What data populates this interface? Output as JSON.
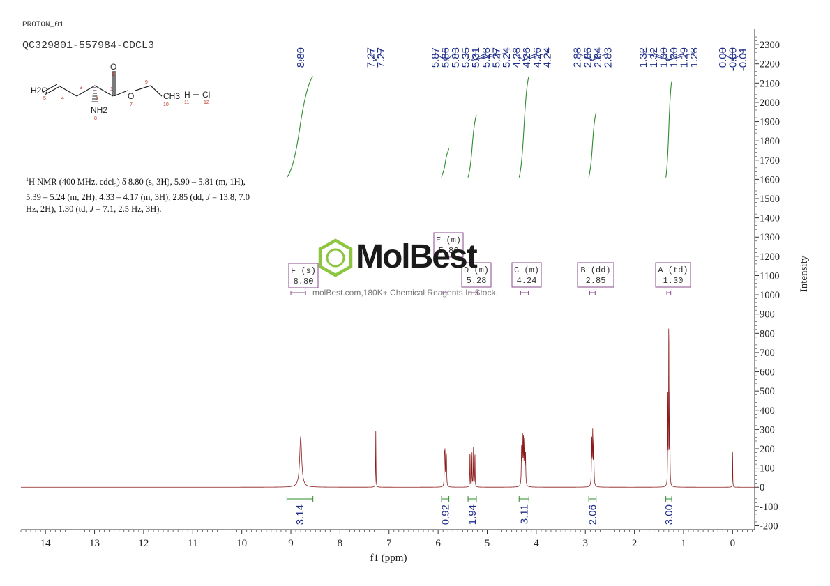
{
  "header": {
    "experiment": "PROTON_01",
    "sample_id": "QC329801-557984-CDCL3"
  },
  "molecule": {
    "atoms": [
      {
        "label": "H2C",
        "num": "5"
      },
      {
        "label": "",
        "num": "4"
      },
      {
        "label": "",
        "num": "3"
      },
      {
        "label": "",
        "num": "2"
      },
      {
        "label": "",
        "num": "1"
      },
      {
        "label": "O",
        "num": "6"
      },
      {
        "label": "O",
        "num": "7"
      },
      {
        "label": "NH2",
        "num": "8"
      },
      {
        "label": "",
        "num": "9"
      },
      {
        "label": "CH3",
        "num": "10"
      },
      {
        "label": "H",
        "num": "11"
      },
      {
        "label": "Cl",
        "num": "12"
      }
    ]
  },
  "nmr_text": {
    "nucleus": "1",
    "line1": "H NMR (400 MHz, cdcl",
    "line1_sub": "3",
    "line1_rest": ") δ 8.80 (s, 3H), 5.90 – 5.81 (m, 1H),",
    "line2": "5.39 – 5.24 (m, 2H), 4.33 – 4.17 (m, 3H), 2.85 (dd, ",
    "j": "J",
    "line2_rest": " = 13.8, 7.0",
    "line3": "Hz, 2H), 1.30 (td, ",
    "line3_rest": " = 7.1, 2.5 Hz, 3H)."
  },
  "watermark": {
    "brand": "MolBest",
    "tagline": "molBest.com,180K+ Chemical Reagents In Stock.",
    "color": "#8cc63f"
  },
  "colors": {
    "spectrum": "#8b1a1a",
    "peak_labels": "#1f2f8a",
    "integral": "#2e8b2e",
    "multiplet_box": "#8a4a8a",
    "axis": "#333333"
  },
  "chart_data": {
    "type": "line",
    "xlabel": "f1 (ppm)",
    "ylabel": "Intensity",
    "xlim": [
      14.5,
      -0.45
    ],
    "ylim": [
      -220,
      2380
    ],
    "x_ticks": [
      14,
      13,
      12,
      11,
      10,
      9,
      8,
      7,
      6,
      5,
      4,
      3,
      2,
      1,
      0
    ],
    "y_ticks": [
      -200,
      -100,
      0,
      100,
      200,
      300,
      400,
      500,
      600,
      700,
      800,
      900,
      1000,
      1100,
      1200,
      1300,
      1400,
      1500,
      1600,
      1700,
      1800,
      1900,
      2000,
      2100,
      2200,
      2300
    ],
    "peaks": [
      {
        "ppm": 8.8,
        "height": 262,
        "width": 0.025
      },
      {
        "ppm": 7.27,
        "height": 292,
        "width": 0.004
      },
      {
        "ppm": 5.87,
        "height": 155,
        "width": 0.005
      },
      {
        "ppm": 5.86,
        "height": 160,
        "width": 0.005
      },
      {
        "ppm": 5.84,
        "height": 150,
        "width": 0.005
      },
      {
        "ppm": 5.83,
        "height": 140,
        "width": 0.005
      },
      {
        "ppm": 5.35,
        "height": 198,
        "width": 0.004
      },
      {
        "ppm": 5.31,
        "height": 185,
        "width": 0.004
      },
      {
        "ppm": 5.28,
        "height": 205,
        "width": 0.004
      },
      {
        "ppm": 5.25,
        "height": 185,
        "width": 0.004
      },
      {
        "ppm": 4.3,
        "height": 190,
        "width": 0.006
      },
      {
        "ppm": 4.28,
        "height": 250,
        "width": 0.006
      },
      {
        "ppm": 4.26,
        "height": 230,
        "width": 0.006
      },
      {
        "ppm": 4.24,
        "height": 215,
        "width": 0.006
      },
      {
        "ppm": 4.22,
        "height": 170,
        "width": 0.006
      },
      {
        "ppm": 2.87,
        "height": 250,
        "width": 0.006
      },
      {
        "ppm": 2.85,
        "height": 270,
        "width": 0.006
      },
      {
        "ppm": 2.83,
        "height": 230,
        "width": 0.006
      },
      {
        "ppm": 1.32,
        "height": 470,
        "width": 0.004
      },
      {
        "ppm": 1.3,
        "height": 900,
        "width": 0.004
      },
      {
        "ppm": 1.28,
        "height": 460,
        "width": 0.004
      },
      {
        "ppm": 0.0,
        "height": 215,
        "width": 0.003
      }
    ],
    "peak_labels": [
      {
        "text": "8.80",
        "ppm": 8.8
      },
      {
        "text": "7.27",
        "ppm": 7.27
      },
      {
        "text": "7.27",
        "ppm": 7.27
      },
      {
        "text": "5.87",
        "ppm": 5.87
      },
      {
        "text": "5.86",
        "ppm": 5.86
      },
      {
        "text": "5.83",
        "ppm": 5.83
      },
      {
        "text": "5.35",
        "ppm": 5.35
      },
      {
        "text": "5.31",
        "ppm": 5.31
      },
      {
        "text": "5.28",
        "ppm": 5.28
      },
      {
        "text": "5.27",
        "ppm": 5.27
      },
      {
        "text": "5.24",
        "ppm": 5.24
      },
      {
        "text": "4.28",
        "ppm": 4.28
      },
      {
        "text": "4.26",
        "ppm": 4.26
      },
      {
        "text": "4.26",
        "ppm": 4.26
      },
      {
        "text": "4.24",
        "ppm": 4.24
      },
      {
        "text": "2.88",
        "ppm": 2.88
      },
      {
        "text": "2.86",
        "ppm": 2.86
      },
      {
        "text": "2.84",
        "ppm": 2.84
      },
      {
        "text": "2.83",
        "ppm": 2.83
      },
      {
        "text": "1.32",
        "ppm": 1.32
      },
      {
        "text": "1.32",
        "ppm": 1.32
      },
      {
        "text": "1.30",
        "ppm": 1.3
      },
      {
        "text": "1.30",
        "ppm": 1.3
      },
      {
        "text": "1.29",
        "ppm": 1.29
      },
      {
        "text": "1.28",
        "ppm": 1.28
      },
      {
        "text": "0.00",
        "ppm": 0.0
      },
      {
        "text": "-0.00",
        "ppm": 0.0
      },
      {
        "text": "-0.01",
        "ppm": -0.01
      }
    ],
    "integrals": [
      {
        "value": "3.14",
        "from": 9.08,
        "to": 8.55,
        "y_low": 1610,
        "y_high": 2135
      },
      {
        "value": "0.92",
        "from": 5.93,
        "to": 5.78,
        "y_low": 1610,
        "y_high": 1760
      },
      {
        "value": "1.94",
        "from": 5.39,
        "to": 5.22,
        "y_low": 1610,
        "y_high": 1935
      },
      {
        "value": "3.11",
        "from": 4.35,
        "to": 4.15,
        "y_low": 1610,
        "y_high": 2135
      },
      {
        "value": "2.06",
        "from": 2.93,
        "to": 2.78,
        "y_low": 1610,
        "y_high": 1950
      },
      {
        "value": "3.00",
        "from": 1.36,
        "to": 1.24,
        "y_low": 1610,
        "y_high": 2110
      }
    ],
    "multiplets": [
      {
        "label": "F (s)",
        "shift": "8.80",
        "ppm": 8.8,
        "from": 9.0,
        "to": 8.7
      },
      {
        "label": "E (m)",
        "shift": "5.86",
        "ppm": 5.86,
        "from": 5.92,
        "to": 5.8
      },
      {
        "label": "D (m)",
        "shift": "5.28",
        "ppm": 5.28,
        "from": 5.37,
        "to": 5.2
      },
      {
        "label": "C (m)",
        "shift": "4.24",
        "ppm": 4.24,
        "from": 4.32,
        "to": 4.16
      },
      {
        "label": "B (dd)",
        "shift": "2.85",
        "ppm": 2.85,
        "from": 2.91,
        "to": 2.8
      },
      {
        "label": "A (td)",
        "shift": "1.30",
        "ppm": 1.3,
        "from": 1.34,
        "to": 1.26
      }
    ]
  }
}
